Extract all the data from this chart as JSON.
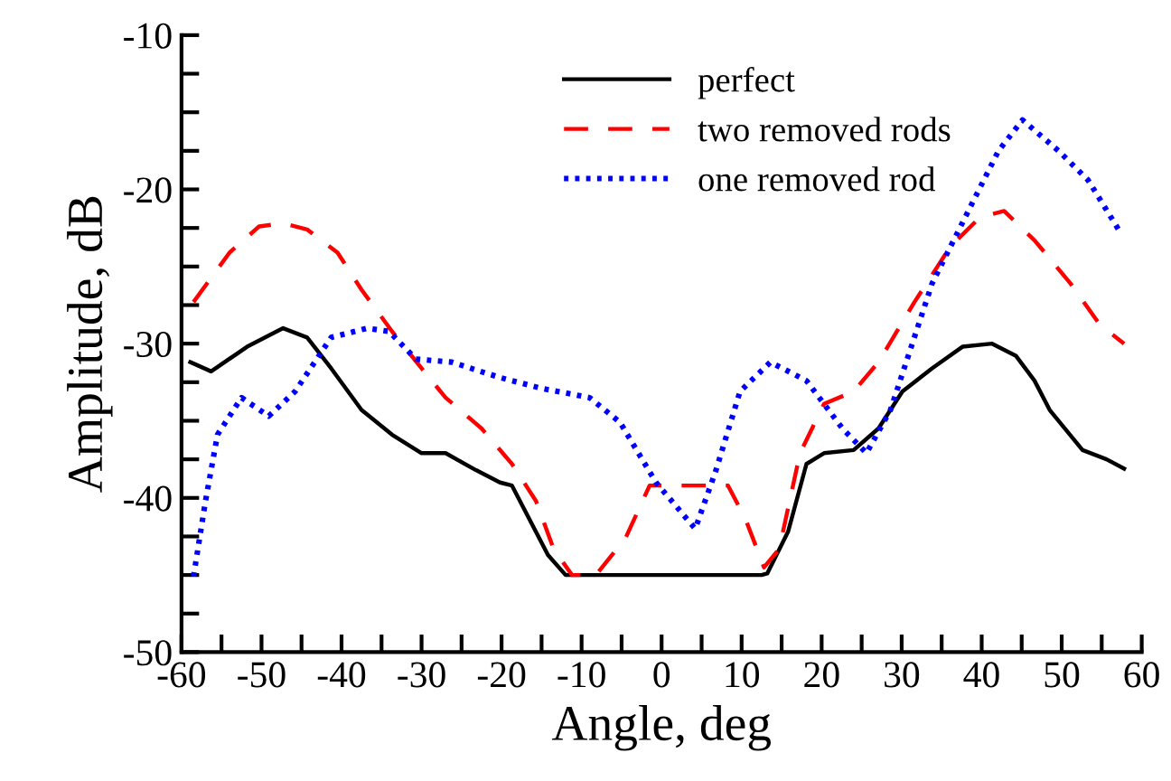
{
  "chart_data": {
    "type": "line",
    "xlabel": "Angle, deg",
    "ylabel": "Amplitude, dB",
    "xlim": [
      -60,
      60
    ],
    "ylim": [
      -50,
      -10
    ],
    "xticks": [
      -60,
      {
        "value": -55,
        "label": null
      },
      -50,
      {
        "value": -45,
        "label": null
      },
      -40,
      {
        "value": -35,
        "label": null
      },
      -30,
      {
        "value": -25,
        "label": null
      },
      -20,
      {
        "value": -15,
        "label": null
      },
      -10,
      {
        "value": -5,
        "label": null
      },
      0,
      {
        "value": 5,
        "label": null
      },
      10,
      {
        "value": 15,
        "label": null
      },
      20,
      {
        "value": 25,
        "label": null
      },
      30,
      {
        "value": 35,
        "label": null
      },
      40,
      {
        "value": 45,
        "label": null
      },
      50,
      {
        "value": 55,
        "label": null
      },
      60
    ],
    "yticks": [
      -50,
      {
        "value": -47.5,
        "label": null
      },
      {
        "value": -45,
        "label": null
      },
      {
        "value": -42.5,
        "label": null
      },
      -40,
      {
        "value": -37.5,
        "label": null
      },
      {
        "value": -35,
        "label": null
      },
      {
        "value": -32.5,
        "label": null
      },
      -30,
      {
        "value": -27.5,
        "label": null
      },
      {
        "value": -25,
        "label": null
      },
      {
        "value": -22.5,
        "label": null
      },
      -20,
      {
        "value": -17.5,
        "label": null
      },
      {
        "value": -15,
        "label": null
      },
      {
        "value": -12.5,
        "label": null
      },
      -10
    ],
    "grid": false,
    "legend": "top",
    "marker": "none",
    "series": [
      {
        "name": "perfect",
        "color": "#000000",
        "line_style": "solid",
        "x": [
          -58.9,
          -56.3,
          -51.8,
          -47.3,
          -44.3,
          -41.3,
          -37.5,
          -33.7,
          -30,
          -27,
          -23.2,
          -20.2,
          -18.7,
          -16.5,
          -14.2,
          -12,
          12.5,
          13.2,
          15.8,
          18.1,
          20.3,
          24,
          27.1,
          30.1,
          33.8,
          37.6,
          41.3,
          44.3,
          46.6,
          48.5,
          52.6,
          55.6,
          57.8
        ],
        "values": [
          -31.2,
          -31.8,
          -30.2,
          -29,
          -29.6,
          -31.6,
          -34.3,
          -35.9,
          -37.1,
          -37.1,
          -38.2,
          -39,
          -39.2,
          -41.4,
          -43.7,
          -45,
          -45,
          -44.9,
          -42.2,
          -37.8,
          -37.1,
          -36.9,
          -35.5,
          -33.1,
          -31.6,
          -30.2,
          -30,
          -30.8,
          -32.4,
          -34.3,
          -36.9,
          -37.5,
          -38.1
        ]
      },
      {
        "name": "two removed rods",
        "color": "#ff0000",
        "line_style": "dashed",
        "x": [
          -58.5,
          -54,
          -50.3,
          -47.3,
          -44.3,
          -40.5,
          -37.5,
          -33.7,
          -30,
          -27,
          -22.5,
          -18.7,
          -15.7,
          -13.5,
          -11.2,
          -8.2,
          -4.5,
          -1.5,
          3,
          8.3,
          10.5,
          12.8,
          14.7,
          17.3,
          20.3,
          24,
          27.1,
          31.6,
          36.1,
          39.8,
          42.8,
          46.6,
          51.1,
          54.8,
          57.8
        ],
        "values": [
          -27.3,
          -24.1,
          -22.4,
          -22.2,
          -22.6,
          -24.1,
          -26.5,
          -29.2,
          -31.6,
          -33.5,
          -35.5,
          -37.8,
          -40.2,
          -43.3,
          -45,
          -45,
          -42.6,
          -39.2,
          -39.2,
          -39.2,
          -41.4,
          -44.5,
          -43.3,
          -37.1,
          -33.9,
          -33.1,
          -31.2,
          -27.3,
          -23.7,
          -21.8,
          -21.4,
          -23.3,
          -26.1,
          -28.8,
          -30
        ]
      },
      {
        "name": "one removed rod",
        "color": "#0000ff",
        "line_style": "dotted",
        "x": [
          -58.5,
          -57,
          -55.5,
          -52.5,
          -49.1,
          -45.8,
          -41.3,
          -36.8,
          -34.1,
          -30.7,
          -26.2,
          -20.2,
          -15,
          -9,
          -5.2,
          -0.7,
          4.2,
          6.8,
          9.8,
          13.6,
          18.1,
          22.6,
          25.6,
          28.6,
          33.8,
          39.1,
          42.1,
          45.1,
          49.6,
          53.3,
          57.1
        ],
        "values": [
          -45.1,
          -40.2,
          -35.9,
          -33.5,
          -34.7,
          -33.1,
          -29.6,
          -29,
          -29.2,
          -31,
          -31.2,
          -32.2,
          -32.9,
          -33.5,
          -35.1,
          -39,
          -42,
          -38.2,
          -33.1,
          -31.2,
          -32.4,
          -35.5,
          -37.1,
          -34.3,
          -26.1,
          -20.6,
          -17.5,
          -15.5,
          -17.5,
          -19.4,
          -22.6
        ]
      }
    ]
  }
}
